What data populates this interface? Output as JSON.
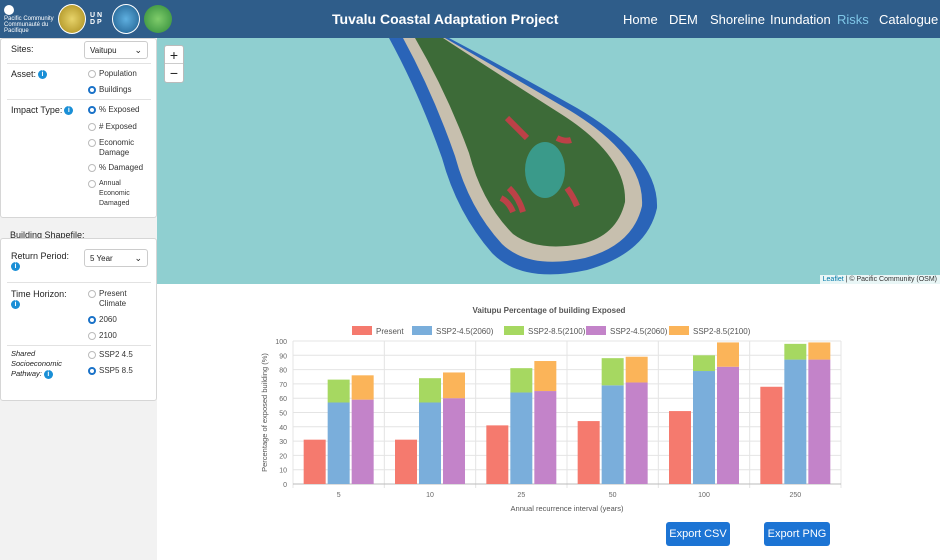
{
  "header": {
    "logos": [
      {
        "name": "pacific-community-logo",
        "text": "Pacific Community Communauté du Pacifique"
      },
      {
        "name": "tuvalu-seal-logo",
        "text": ""
      },
      {
        "name": "undp-logo",
        "text": "U N D P"
      },
      {
        "name": "adaptation-fund-logo",
        "text": ""
      },
      {
        "name": "green-logo",
        "text": ""
      }
    ],
    "title": "Tuvalu Coastal Adaptation Project",
    "nav": [
      {
        "label": "Home",
        "active": false
      },
      {
        "label": "DEM",
        "active": false
      },
      {
        "label": "Shoreline",
        "active": false
      },
      {
        "label": "Inundation",
        "active": false
      },
      {
        "label": "Risks",
        "active": true
      },
      {
        "label": "Catalogue",
        "active": false
      }
    ]
  },
  "sidebar": {
    "sites_label": "Sites:",
    "sites_value": "Vaitupu",
    "asset_label": "Asset:",
    "asset_options": [
      {
        "label": "Population",
        "selected": false
      },
      {
        "label": "Buildings",
        "selected": true
      }
    ],
    "impact_label": "Impact Type:",
    "impact_options": [
      {
        "label": "% Exposed",
        "selected": true
      },
      {
        "label": "# Exposed",
        "selected": false
      },
      {
        "label": "Economic Damage",
        "selected": false
      },
      {
        "label": "% Damaged",
        "selected": false
      },
      {
        "label": "Annual Economic Damaged",
        "selected": false
      }
    ],
    "shapefile_label": "Building Shapefile:",
    "return_label": "Return Period:",
    "return_value": "5 Year",
    "horizon_label": "Time Horizon:",
    "horizon_options": [
      {
        "label": "Present Climate",
        "selected": false
      },
      {
        "label": "2060",
        "selected": true
      },
      {
        "label": "2100",
        "selected": false
      }
    ],
    "ssp_label": "Shared Socioeconomic Pathway:",
    "ssp_options": [
      {
        "label": "SSP2 4.5",
        "selected": false
      },
      {
        "label": "SSP5 8.5",
        "selected": true
      }
    ]
  },
  "map": {
    "zoom_in": "+",
    "zoom_out": "−",
    "attribution_link": "Leaflet",
    "attribution_text": " | © Pacific Community (OSM)"
  },
  "chart_data": {
    "type": "bar",
    "stacked": true,
    "title": "Vaitupu Percentage of building Exposed",
    "xlabel": "Annual recurrence interval (years)",
    "ylabel": "Percentage of exposed building (%)",
    "ylim": [
      0,
      100
    ],
    "yticks": [
      0,
      10,
      20,
      30,
      40,
      50,
      60,
      70,
      80,
      90,
      100
    ],
    "categories": [
      "5",
      "10",
      "25",
      "50",
      "100",
      "250"
    ],
    "legend_position": "top",
    "grid": true,
    "series": [
      {
        "name": "Present",
        "color": "#f57a6e",
        "stack": "present",
        "values": [
          31,
          31,
          41,
          44,
          51,
          68
        ]
      },
      {
        "name": "SSP2-4.5(2060)",
        "color": "#7aaedb",
        "stack": "ssp2",
        "values": [
          57,
          57,
          64,
          69,
          79,
          87
        ]
      },
      {
        "name": "SSP2-8.5(2100)",
        "color": "#a6d861",
        "stack": "ssp2",
        "values": [
          16,
          17,
          17,
          19,
          11,
          11
        ]
      },
      {
        "name": "SSP2-4.5(2060)",
        "color": "#c383c9",
        "stack": "ssp5",
        "values": [
          59,
          60,
          65,
          71,
          82,
          87
        ]
      },
      {
        "name": "SSP2-8.5(2100)",
        "color": "#fbb459",
        "stack": "ssp5",
        "values": [
          17,
          18,
          21,
          18,
          17,
          12
        ]
      }
    ]
  },
  "buttons": {
    "export_csv": "Export CSV",
    "export_png": "Export PNG"
  }
}
